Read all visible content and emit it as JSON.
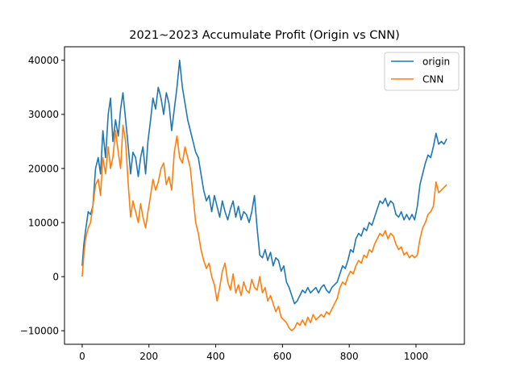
{
  "chart_data": {
    "type": "line",
    "title": "2021~2023 Accumulate Profit (Origin vs CNN)",
    "xlabel": "",
    "ylabel": "",
    "xlim": [
      -53,
      1145
    ],
    "ylim": [
      -12500,
      42500
    ],
    "xticks": [
      0,
      200,
      400,
      600,
      800,
      1000
    ],
    "yticks": [
      -10000,
      0,
      10000,
      20000,
      30000,
      40000
    ],
    "grid": false,
    "legend": "top-right",
    "series": [
      {
        "name": "origin",
        "color": "#1f77b4",
        "points": [
          [
            0,
            2000
          ],
          [
            5,
            6000
          ],
          [
            10,
            8500
          ],
          [
            18,
            12000
          ],
          [
            25,
            11500
          ],
          [
            32,
            13000
          ],
          [
            40,
            20000
          ],
          [
            48,
            22000
          ],
          [
            55,
            19000
          ],
          [
            62,
            27000
          ],
          [
            70,
            22000
          ],
          [
            78,
            30000
          ],
          [
            85,
            33000
          ],
          [
            92,
            25000
          ],
          [
            100,
            29000
          ],
          [
            108,
            26000
          ],
          [
            115,
            31000
          ],
          [
            122,
            34000
          ],
          [
            130,
            29000
          ],
          [
            138,
            24000
          ],
          [
            145,
            19000
          ],
          [
            152,
            23000
          ],
          [
            160,
            22000
          ],
          [
            168,
            18500
          ],
          [
            175,
            22000
          ],
          [
            182,
            24000
          ],
          [
            190,
            19000
          ],
          [
            197,
            25000
          ],
          [
            205,
            29000
          ],
          [
            212,
            33000
          ],
          [
            220,
            31000
          ],
          [
            228,
            35000
          ],
          [
            236,
            33000
          ],
          [
            244,
            30000
          ],
          [
            252,
            34000
          ],
          [
            260,
            32000
          ],
          [
            268,
            27000
          ],
          [
            276,
            31000
          ],
          [
            284,
            35000
          ],
          [
            292,
            40000
          ],
          [
            300,
            35000
          ],
          [
            308,
            32000
          ],
          [
            316,
            29000
          ],
          [
            324,
            27000
          ],
          [
            332,
            25000
          ],
          [
            340,
            23000
          ],
          [
            348,
            22000
          ],
          [
            356,
            19000
          ],
          [
            364,
            16000
          ],
          [
            372,
            14000
          ],
          [
            380,
            15000
          ],
          [
            388,
            12000
          ],
          [
            396,
            15000
          ],
          [
            404,
            13000
          ],
          [
            412,
            11000
          ],
          [
            420,
            14000
          ],
          [
            428,
            12000
          ],
          [
            436,
            10500
          ],
          [
            444,
            12500
          ],
          [
            452,
            14000
          ],
          [
            460,
            11000
          ],
          [
            468,
            13000
          ],
          [
            476,
            10500
          ],
          [
            484,
            12000
          ],
          [
            492,
            11500
          ],
          [
            500,
            10000
          ],
          [
            508,
            12000
          ],
          [
            516,
            15000
          ],
          [
            524,
            9000
          ],
          [
            532,
            4000
          ],
          [
            540,
            3500
          ],
          [
            548,
            5000
          ],
          [
            556,
            3000
          ],
          [
            564,
            4500
          ],
          [
            572,
            2000
          ],
          [
            580,
            3500
          ],
          [
            588,
            3000
          ],
          [
            596,
            1000
          ],
          [
            604,
            2000
          ],
          [
            612,
            -1000
          ],
          [
            620,
            -2000
          ],
          [
            628,
            -3500
          ],
          [
            636,
            -5000
          ],
          [
            644,
            -4500
          ],
          [
            652,
            -3500
          ],
          [
            660,
            -2500
          ],
          [
            668,
            -3000
          ],
          [
            676,
            -2000
          ],
          [
            684,
            -3000
          ],
          [
            692,
            -2500
          ],
          [
            700,
            -2000
          ],
          [
            708,
            -3000
          ],
          [
            716,
            -2000
          ],
          [
            724,
            -1500
          ],
          [
            732,
            -2500
          ],
          [
            740,
            -3000
          ],
          [
            748,
            -2000
          ],
          [
            756,
            -1500
          ],
          [
            764,
            -1000
          ],
          [
            772,
            500
          ],
          [
            780,
            2000
          ],
          [
            788,
            1500
          ],
          [
            796,
            3000
          ],
          [
            804,
            5000
          ],
          [
            812,
            4500
          ],
          [
            820,
            7000
          ],
          [
            828,
            8000
          ],
          [
            836,
            7500
          ],
          [
            844,
            9000
          ],
          [
            852,
            8500
          ],
          [
            860,
            10000
          ],
          [
            868,
            9500
          ],
          [
            876,
            11000
          ],
          [
            884,
            12500
          ],
          [
            892,
            14000
          ],
          [
            900,
            13500
          ],
          [
            908,
            14500
          ],
          [
            916,
            13000
          ],
          [
            924,
            14000
          ],
          [
            932,
            13500
          ],
          [
            940,
            11500
          ],
          [
            948,
            11000
          ],
          [
            956,
            12000
          ],
          [
            964,
            10500
          ],
          [
            972,
            11500
          ],
          [
            980,
            10500
          ],
          [
            988,
            11500
          ],
          [
            996,
            10500
          ],
          [
            1004,
            13000
          ],
          [
            1012,
            17000
          ],
          [
            1020,
            19000
          ],
          [
            1028,
            21000
          ],
          [
            1036,
            22500
          ],
          [
            1044,
            22000
          ],
          [
            1052,
            24000
          ],
          [
            1060,
            26500
          ],
          [
            1068,
            24500
          ],
          [
            1076,
            25000
          ],
          [
            1084,
            24500
          ],
          [
            1092,
            25500
          ]
        ]
      },
      {
        "name": "CNN",
        "color": "#ff7f0e",
        "points": [
          [
            0,
            0
          ],
          [
            5,
            4000
          ],
          [
            10,
            7000
          ],
          [
            18,
            9000
          ],
          [
            25,
            10000
          ],
          [
            32,
            13000
          ],
          [
            40,
            17000
          ],
          [
            48,
            18000
          ],
          [
            55,
            15000
          ],
          [
            62,
            22000
          ],
          [
            70,
            19000
          ],
          [
            78,
            24000
          ],
          [
            85,
            20000
          ],
          [
            92,
            22000
          ],
          [
            100,
            27000
          ],
          [
            108,
            23000
          ],
          [
            115,
            20000
          ],
          [
            122,
            28000
          ],
          [
            130,
            25000
          ],
          [
            138,
            17000
          ],
          [
            145,
            11000
          ],
          [
            152,
            14000
          ],
          [
            160,
            12000
          ],
          [
            168,
            10000
          ],
          [
            175,
            13500
          ],
          [
            182,
            11000
          ],
          [
            190,
            9000
          ],
          [
            197,
            12000
          ],
          [
            205,
            15000
          ],
          [
            212,
            18000
          ],
          [
            220,
            16000
          ],
          [
            228,
            17500
          ],
          [
            236,
            20000
          ],
          [
            244,
            21000
          ],
          [
            252,
            17000
          ],
          [
            260,
            18500
          ],
          [
            268,
            16000
          ],
          [
            276,
            23000
          ],
          [
            284,
            26000
          ],
          [
            292,
            22000
          ],
          [
            300,
            21000
          ],
          [
            308,
            24000
          ],
          [
            316,
            22000
          ],
          [
            324,
            20000
          ],
          [
            332,
            15000
          ],
          [
            340,
            10000
          ],
          [
            348,
            8000
          ],
          [
            356,
            5000
          ],
          [
            364,
            3000
          ],
          [
            372,
            1500
          ],
          [
            380,
            2500
          ],
          [
            388,
            0
          ],
          [
            396,
            -1500
          ],
          [
            404,
            -4500
          ],
          [
            412,
            -2000
          ],
          [
            420,
            1000
          ],
          [
            428,
            2500
          ],
          [
            436,
            -1000
          ],
          [
            444,
            -2500
          ],
          [
            452,
            500
          ],
          [
            460,
            -3000
          ],
          [
            468,
            -1500
          ],
          [
            476,
            -3500
          ],
          [
            484,
            -1000
          ],
          [
            492,
            -2500
          ],
          [
            500,
            -3000
          ],
          [
            508,
            -500
          ],
          [
            516,
            -2000
          ],
          [
            524,
            -2500
          ],
          [
            532,
            0
          ],
          [
            540,
            -3000
          ],
          [
            548,
            -2000
          ],
          [
            556,
            -4500
          ],
          [
            564,
            -3500
          ],
          [
            572,
            -5000
          ],
          [
            580,
            -6500
          ],
          [
            588,
            -5500
          ],
          [
            596,
            -7500
          ],
          [
            604,
            -8000
          ],
          [
            612,
            -8500
          ],
          [
            620,
            -9500
          ],
          [
            628,
            -10000
          ],
          [
            636,
            -9500
          ],
          [
            644,
            -8500
          ],
          [
            652,
            -9000
          ],
          [
            660,
            -8000
          ],
          [
            668,
            -9000
          ],
          [
            676,
            -7500
          ],
          [
            684,
            -8500
          ],
          [
            692,
            -7000
          ],
          [
            700,
            -8000
          ],
          [
            708,
            -7500
          ],
          [
            716,
            -7000
          ],
          [
            724,
            -7500
          ],
          [
            732,
            -6500
          ],
          [
            740,
            -7000
          ],
          [
            748,
            -6000
          ],
          [
            756,
            -5000
          ],
          [
            764,
            -4000
          ],
          [
            772,
            -2000
          ],
          [
            780,
            -1000
          ],
          [
            788,
            -1500
          ],
          [
            796,
            0
          ],
          [
            804,
            1000
          ],
          [
            812,
            500
          ],
          [
            820,
            2000
          ],
          [
            828,
            3000
          ],
          [
            836,
            2500
          ],
          [
            844,
            4000
          ],
          [
            852,
            3500
          ],
          [
            860,
            5000
          ],
          [
            868,
            4500
          ],
          [
            876,
            6000
          ],
          [
            884,
            7000
          ],
          [
            892,
            8000
          ],
          [
            900,
            7500
          ],
          [
            908,
            8500
          ],
          [
            916,
            7000
          ],
          [
            924,
            8000
          ],
          [
            932,
            7500
          ],
          [
            940,
            6000
          ],
          [
            948,
            5000
          ],
          [
            956,
            5500
          ],
          [
            964,
            4000
          ],
          [
            972,
            4500
          ],
          [
            980,
            3500
          ],
          [
            988,
            4000
          ],
          [
            996,
            3500
          ],
          [
            1004,
            4000
          ],
          [
            1012,
            7000
          ],
          [
            1020,
            9000
          ],
          [
            1028,
            10000
          ],
          [
            1036,
            11500
          ],
          [
            1044,
            12000
          ],
          [
            1052,
            13000
          ],
          [
            1060,
            17500
          ],
          [
            1068,
            15500
          ],
          [
            1076,
            16000
          ],
          [
            1084,
            16500
          ],
          [
            1092,
            17000
          ]
        ]
      }
    ]
  }
}
